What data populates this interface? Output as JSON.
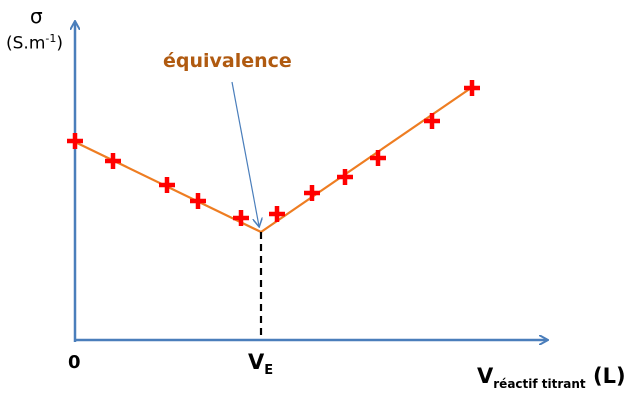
{
  "y_axis": {
    "symbol": "σ",
    "unit": "(S.m",
    "unit_exp": "-1",
    "unit_close": ")"
  },
  "x_axis": {
    "symbol": "V",
    "subscript": "réactif titrant",
    "unit": "(L)"
  },
  "ticks": {
    "origin": "0",
    "ve_main": "V",
    "ve_sub": "E"
  },
  "annotation": "équivalence",
  "colors": {
    "axis": "#4a7ebb",
    "line": "#ee7d22",
    "marker": "#ff0000",
    "annotation": "#b05a10"
  }
}
